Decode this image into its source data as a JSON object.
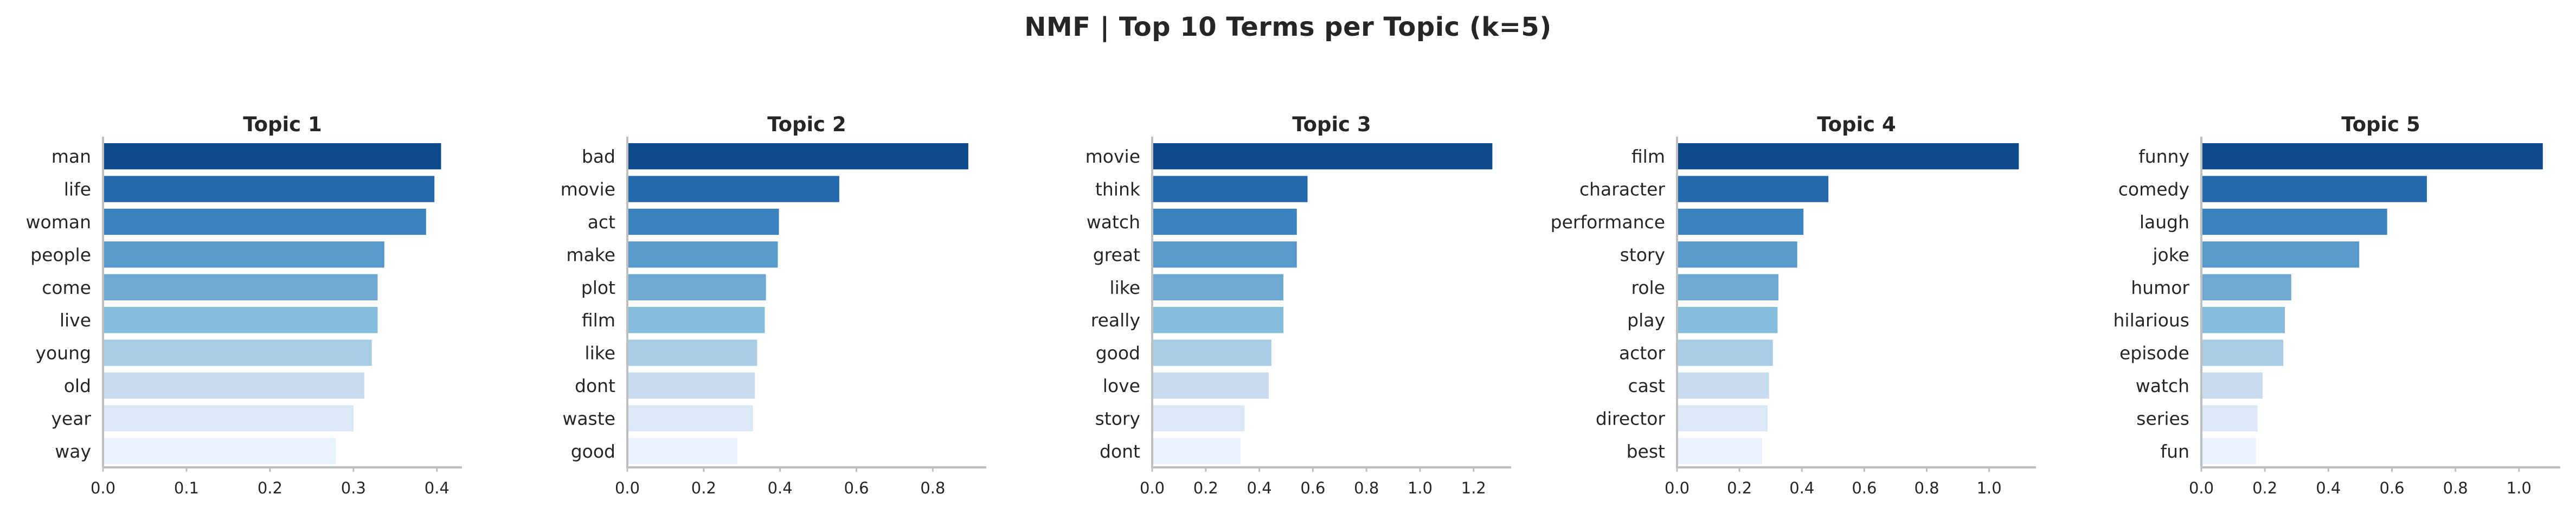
{
  "figure_title": "NMF | Top 10 Terms per Topic (k=5)",
  "bar_colors": [
    "#0d4a8c",
    "#2668ad",
    "#3b83bf",
    "#5899cb",
    "#6ea9d1",
    "#85bbdb",
    "#a7cce4",
    "#c9dcef",
    "#dae8f6",
    "#e8f0fb"
  ],
  "chart_data": [
    {
      "type": "bar",
      "orientation": "horizontal",
      "title": "Topic 1",
      "categories": [
        "man",
        "life",
        "woman",
        "people",
        "come",
        "live",
        "young",
        "old",
        "year",
        "way"
      ],
      "values": [
        0.405,
        0.397,
        0.387,
        0.337,
        0.329,
        0.329,
        0.322,
        0.313,
        0.3,
        0.279
      ],
      "xlim": [
        0,
        0.43
      ],
      "xticks": [
        "0.0",
        "0.1",
        "0.2",
        "0.3",
        "0.4"
      ],
      "xtick_values": [
        0,
        0.1,
        0.2,
        0.3,
        0.4
      ],
      "xlabel": "",
      "ylabel": "",
      "grid": false
    },
    {
      "type": "bar",
      "orientation": "horizontal",
      "title": "Topic 2",
      "categories": [
        "bad",
        "movie",
        "act",
        "make",
        "plot",
        "film",
        "like",
        "dont",
        "waste",
        "good"
      ],
      "values": [
        0.893,
        0.555,
        0.397,
        0.394,
        0.363,
        0.36,
        0.34,
        0.334,
        0.329,
        0.288
      ],
      "xlim": [
        0,
        0.94
      ],
      "xticks": [
        "0.0",
        "0.2",
        "0.4",
        "0.6",
        "0.8"
      ],
      "xtick_values": [
        0,
        0.2,
        0.4,
        0.6,
        0.8
      ],
      "xlabel": "",
      "ylabel": "",
      "grid": false
    },
    {
      "type": "bar",
      "orientation": "horizontal",
      "title": "Topic 3",
      "categories": [
        "movie",
        "think",
        "watch",
        "great",
        "like",
        "really",
        "good",
        "love",
        "story",
        "dont"
      ],
      "values": [
        1.27,
        0.58,
        0.54,
        0.54,
        0.49,
        0.49,
        0.445,
        0.435,
        0.345,
        0.33
      ],
      "xlim": [
        0,
        1.34
      ],
      "xticks": [
        "0.0",
        "0.2",
        "0.4",
        "0.6",
        "0.8",
        "1.0",
        "1.2"
      ],
      "xtick_values": [
        0,
        0.2,
        0.4,
        0.6,
        0.8,
        1.0,
        1.2
      ],
      "xlabel": "",
      "ylabel": "",
      "grid": false
    },
    {
      "type": "bar",
      "orientation": "horizontal",
      "title": "Topic 4",
      "categories": [
        "film",
        "character",
        "performance",
        "story",
        "role",
        "play",
        "actor",
        "cast",
        "director",
        "best"
      ],
      "values": [
        1.095,
        0.485,
        0.405,
        0.385,
        0.325,
        0.322,
        0.307,
        0.295,
        0.29,
        0.272
      ],
      "xlim": [
        0,
        1.15
      ],
      "xticks": [
        "0.0",
        "0.2",
        "0.4",
        "0.6",
        "0.8",
        "1.0"
      ],
      "xtick_values": [
        0,
        0.2,
        0.4,
        0.6,
        0.8,
        1.0
      ],
      "xlabel": "",
      "ylabel": "",
      "grid": false
    },
    {
      "type": "bar",
      "orientation": "horizontal",
      "title": "Topic 5",
      "categories": [
        "funny",
        "comedy",
        "laugh",
        "joke",
        "humor",
        "hilarious",
        "episode",
        "watch",
        "series",
        "fun"
      ],
      "values": [
        1.075,
        0.71,
        0.585,
        0.497,
        0.283,
        0.263,
        0.258,
        0.193,
        0.177,
        0.172
      ],
      "xlim": [
        0,
        1.13
      ],
      "xticks": [
        "0.0",
        "0.2",
        "0.4",
        "0.6",
        "0.8",
        "1.0"
      ],
      "xtick_values": [
        0,
        0.2,
        0.4,
        0.6,
        0.8,
        1.0
      ],
      "xlabel": "",
      "ylabel": "",
      "grid": false
    }
  ]
}
